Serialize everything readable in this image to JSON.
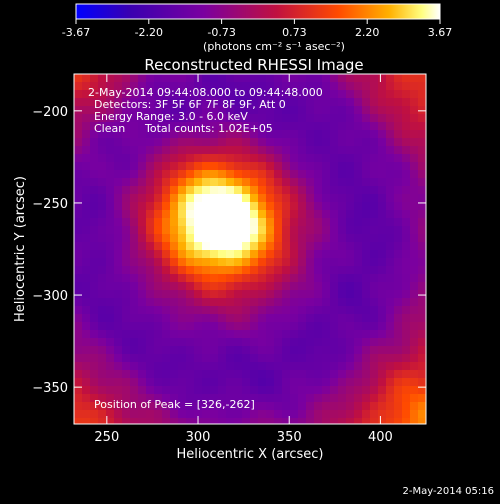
{
  "chart_data": {
    "type": "heatmap",
    "title": "Reconstructed RHESSI Image",
    "xlabel": "Heliocentric X (arcsec)",
    "ylabel": "Heliocentric Y (arcsec)",
    "xlim": [
      232,
      425
    ],
    "ylim": [
      -370,
      -180
    ],
    "x_ticks": [
      250,
      300,
      350,
      400
    ],
    "y_ticks": [
      -200,
      -250,
      -300,
      -350
    ],
    "colorbar": {
      "ticks": [
        "-3.67",
        "-2.20",
        "-0.73",
        "0.73",
        "2.20",
        "3.67"
      ],
      "range": [
        -3.67,
        3.67
      ],
      "units": "(photons cm⁻² s⁻¹ asec⁻²)"
    },
    "annotations": [
      "2-May-2014 09:44:08.000 to 09:44:48.000",
      "Detectors: 3F 5F 6F 7F 8F 9F, Att 0",
      "Energy Range: 3.0 - 6.0 keV",
      "Clean",
      "Total counts: 1.02E+05"
    ],
    "peak_label": "Position of Peak = [326,-262]",
    "peak": {
      "x": 326,
      "y": -262,
      "value": 3.67
    },
    "features": {
      "core": {
        "x": 318,
        "y": -262,
        "amp": 3.67,
        "sigma": 22
      },
      "core_secondary": {
        "x": 300,
        "y": -255,
        "amp": 2.4,
        "sigma": 25
      },
      "ring": {
        "x": 318,
        "y": -268,
        "radius": 78,
        "width": 24,
        "amp": -1.6
      },
      "inner_gap": {
        "x": 318,
        "y": -262,
        "amp": -0.8,
        "sigma": 50
      },
      "corner_bright": [
        {
          "x": 425,
          "y": -370,
          "amp": 2.0,
          "sigma": 25
        },
        {
          "x": 232,
          "y": -370,
          "amp": 1.2,
          "sigma": 25
        },
        {
          "x": 425,
          "y": -180,
          "amp": 1.2,
          "sigma": 25
        },
        {
          "x": 232,
          "y": -180,
          "amp": 1.2,
          "sigma": 25
        }
      ]
    }
  },
  "footer_timestamp": "2-May-2014 05:16",
  "colors": {
    "background": "#000000",
    "colormap": [
      "#0000ff",
      "#3a00b0",
      "#7a00a0",
      "#c01040",
      "#ff4a00",
      "#ffb000",
      "#ffff80",
      "#ffffff"
    ]
  }
}
